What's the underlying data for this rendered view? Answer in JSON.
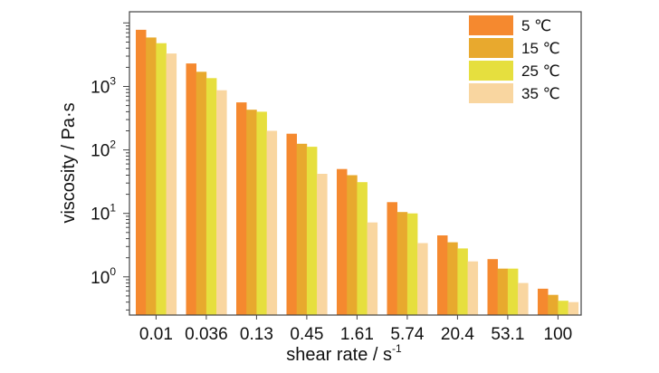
{
  "chart_data": {
    "type": "bar",
    "title": "",
    "xlabel": "shear rate / s",
    "xlabel_superscript": "-1",
    "ylabel": "viscosity / Pa·s",
    "y_scale": "log",
    "ylim": [
      0.25,
      15000
    ],
    "y_ticks": [
      {
        "value": 1,
        "base": "10",
        "exp": "0"
      },
      {
        "value": 10,
        "base": "10",
        "exp": "1"
      },
      {
        "value": 100,
        "base": "10",
        "exp": "2"
      },
      {
        "value": 1000,
        "base": "10",
        "exp": "3"
      }
    ],
    "categories": [
      "0.01",
      "0.036",
      "0.13",
      "0.45",
      "1.61",
      "5.74",
      "20.4",
      "53.1",
      "100"
    ],
    "series": [
      {
        "name": "5 ℃",
        "color": "#f5892f",
        "values": [
          7800,
          2300,
          560,
          180,
          50,
          15,
          4.5,
          1.9,
          0.65
        ]
      },
      {
        "name": "15 ℃",
        "color": "#e8a92e",
        "values": [
          5900,
          1700,
          430,
          125,
          40,
          10.5,
          3.5,
          1.35,
          0.52
        ]
      },
      {
        "name": "25 ℃",
        "color": "#e6df3e",
        "values": [
          4800,
          1350,
          400,
          112,
          31,
          10,
          2.8,
          1.35,
          0.42
        ]
      },
      {
        "name": "35 ℃",
        "color": "#f9d6a0",
        "values": [
          3300,
          870,
          200,
          42,
          7.2,
          3.4,
          1.75,
          0.8,
          0.4
        ]
      }
    ],
    "legend_position": "top-right",
    "grid": false
  }
}
